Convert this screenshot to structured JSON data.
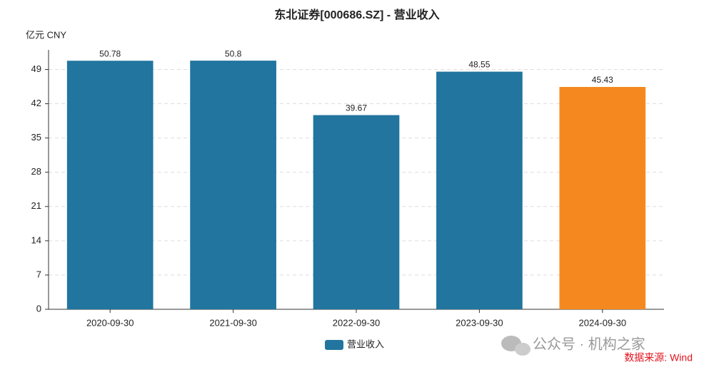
{
  "chart_data": {
    "type": "bar",
    "title": "东北证券[000686.SZ] - 营业收入",
    "y_unit": "亿元  CNY",
    "categories": [
      "2020-09-30",
      "2021-09-30",
      "2022-09-30",
      "2023-09-30",
      "2024-09-30"
    ],
    "series": [
      {
        "name": "营业收入",
        "color": "#21759f",
        "values": [
          50.78,
          50.8,
          39.67,
          48.55,
          45.43
        ]
      }
    ],
    "colors": [
      "#21759f",
      "#21759f",
      "#21759f",
      "#21759f",
      "#f5891f"
    ],
    "ylim": [
      0,
      53
    ],
    "yticks": [
      0,
      7,
      14,
      21,
      28,
      35,
      42,
      49
    ],
    "grid": true,
    "watermark": "公众号 · 机构之家",
    "source": "数据来源: Wind"
  }
}
